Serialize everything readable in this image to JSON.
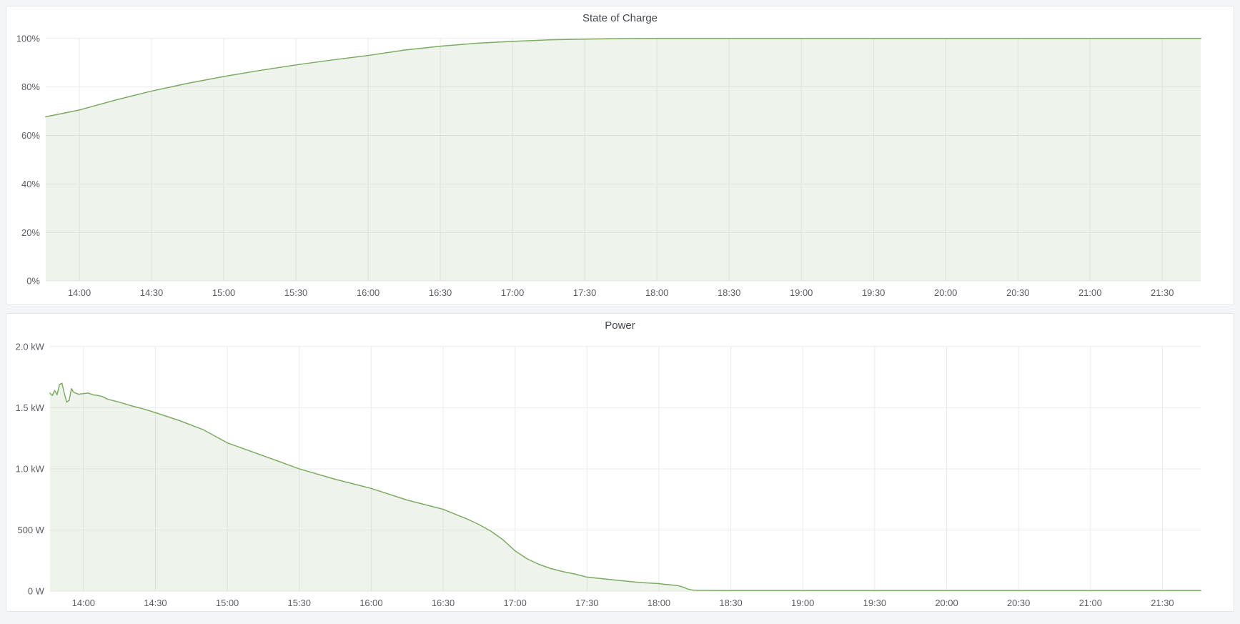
{
  "colors": {
    "page_bg": "#f4f5f7",
    "panel_bg": "#ffffff",
    "panel_border": "#e4e7ea",
    "series_green": "#7cab63",
    "series_fill": "rgba(124,171,99,0.13)",
    "grid": "#ebebeb",
    "tick_text": "#5a5c62"
  },
  "chart_data": [
    {
      "type": "area",
      "title": "State of Charge",
      "ylabel": "",
      "xlabel": "",
      "legend": "none",
      "grid": "on",
      "x_time_start": "13:46",
      "x_time_end": "21:46",
      "x_tick_labels": [
        "14:00",
        "14:30",
        "15:00",
        "15:30",
        "16:00",
        "16:30",
        "17:00",
        "17:30",
        "18:00",
        "18:30",
        "19:00",
        "19:30",
        "20:00",
        "20:30",
        "21:00",
        "21:30"
      ],
      "y_range": [
        0,
        100
      ],
      "y_ticks": [
        {
          "value": 0,
          "label": "0%"
        },
        {
          "value": 20,
          "label": "20%"
        },
        {
          "value": 40,
          "label": "40%"
        },
        {
          "value": 60,
          "label": "60%"
        },
        {
          "value": 80,
          "label": "80%"
        },
        {
          "value": 100,
          "label": "100%"
        }
      ],
      "points": [
        [
          "13:46",
          67.7
        ],
        [
          "13:52",
          68.9
        ],
        [
          "14:00",
          70.5
        ],
        [
          "14:15",
          74.6
        ],
        [
          "14:30",
          78.3
        ],
        [
          "14:45",
          81.5
        ],
        [
          "15:00",
          84.3
        ],
        [
          "15:15",
          86.8
        ],
        [
          "15:30",
          89.1
        ],
        [
          "15:45",
          91.1
        ],
        [
          "16:00",
          93.0
        ],
        [
          "16:15",
          95.2
        ],
        [
          "16:30",
          96.8
        ],
        [
          "16:45",
          98.0
        ],
        [
          "17:00",
          98.8
        ],
        [
          "17:15",
          99.4
        ],
        [
          "17:30",
          99.7
        ],
        [
          "17:45",
          99.95
        ],
        [
          "18:00",
          100
        ],
        [
          "18:30",
          100
        ],
        [
          "19:00",
          100
        ],
        [
          "19:30",
          100
        ],
        [
          "20:00",
          100
        ],
        [
          "20:30",
          100
        ],
        [
          "21:00",
          100
        ],
        [
          "21:30",
          100
        ],
        [
          "21:46",
          100
        ]
      ]
    },
    {
      "type": "area",
      "title": "Power",
      "ylabel": "",
      "xlabel": "",
      "legend": "none",
      "grid": "on",
      "x_time_start": "13:46",
      "x_time_end": "21:46",
      "x_tick_labels": [
        "14:00",
        "14:30",
        "15:00",
        "15:30",
        "16:00",
        "16:30",
        "17:00",
        "17:30",
        "18:00",
        "18:30",
        "19:00",
        "19:30",
        "20:00",
        "20:30",
        "21:00",
        "21:30"
      ],
      "y_range": [
        0,
        2000
      ],
      "y_ticks": [
        {
          "value": 0,
          "label": "0 W"
        },
        {
          "value": 500,
          "label": "500 W"
        },
        {
          "value": 1000,
          "label": "1.0 kW"
        },
        {
          "value": 1500,
          "label": "1.5 kW"
        },
        {
          "value": 2000,
          "label": "2.0 kW"
        }
      ],
      "points": [
        [
          "13:46",
          1620
        ],
        [
          "13:47",
          1600
        ],
        [
          "13:48",
          1640
        ],
        [
          "13:49",
          1605
        ],
        [
          "13:50",
          1690
        ],
        [
          "13:51",
          1700
        ],
        [
          "13:52",
          1620
        ],
        [
          "13:53",
          1545
        ],
        [
          "13:54",
          1560
        ],
        [
          "13:55",
          1655
        ],
        [
          "13:56",
          1625
        ],
        [
          "13:58",
          1610
        ],
        [
          "14:00",
          1615
        ],
        [
          "14:02",
          1620
        ],
        [
          "14:04",
          1605
        ],
        [
          "14:06",
          1600
        ],
        [
          "14:08",
          1590
        ],
        [
          "14:10",
          1570
        ],
        [
          "14:15",
          1545
        ],
        [
          "14:20",
          1515
        ],
        [
          "14:25",
          1490
        ],
        [
          "14:30",
          1460
        ],
        [
          "14:40",
          1395
        ],
        [
          "14:50",
          1320
        ],
        [
          "15:00",
          1213
        ],
        [
          "15:15",
          1107
        ],
        [
          "15:30",
          1000
        ],
        [
          "15:45",
          915
        ],
        [
          "16:00",
          840
        ],
        [
          "16:15",
          745
        ],
        [
          "16:30",
          670
        ],
        [
          "16:40",
          590
        ],
        [
          "16:45",
          545
        ],
        [
          "16:50",
          490
        ],
        [
          "16:55",
          420
        ],
        [
          "17:00",
          330
        ],
        [
          "17:05",
          265
        ],
        [
          "17:10",
          220
        ],
        [
          "17:15",
          185
        ],
        [
          "17:20",
          160
        ],
        [
          "17:25",
          140
        ],
        [
          "17:30",
          115
        ],
        [
          "17:35",
          105
        ],
        [
          "17:40",
          95
        ],
        [
          "17:45",
          85
        ],
        [
          "17:50",
          75
        ],
        [
          "17:55",
          68
        ],
        [
          "18:00",
          62
        ],
        [
          "18:03",
          55
        ],
        [
          "18:06",
          50
        ],
        [
          "18:08",
          45
        ],
        [
          "18:10",
          35
        ],
        [
          "18:12",
          18
        ],
        [
          "18:14",
          10
        ],
        [
          "18:16",
          8
        ],
        [
          "18:30",
          6
        ],
        [
          "19:00",
          6
        ],
        [
          "19:30",
          6
        ],
        [
          "20:00",
          6
        ],
        [
          "20:30",
          6
        ],
        [
          "21:00",
          6
        ],
        [
          "21:30",
          6
        ],
        [
          "21:46",
          6
        ]
      ]
    }
  ]
}
